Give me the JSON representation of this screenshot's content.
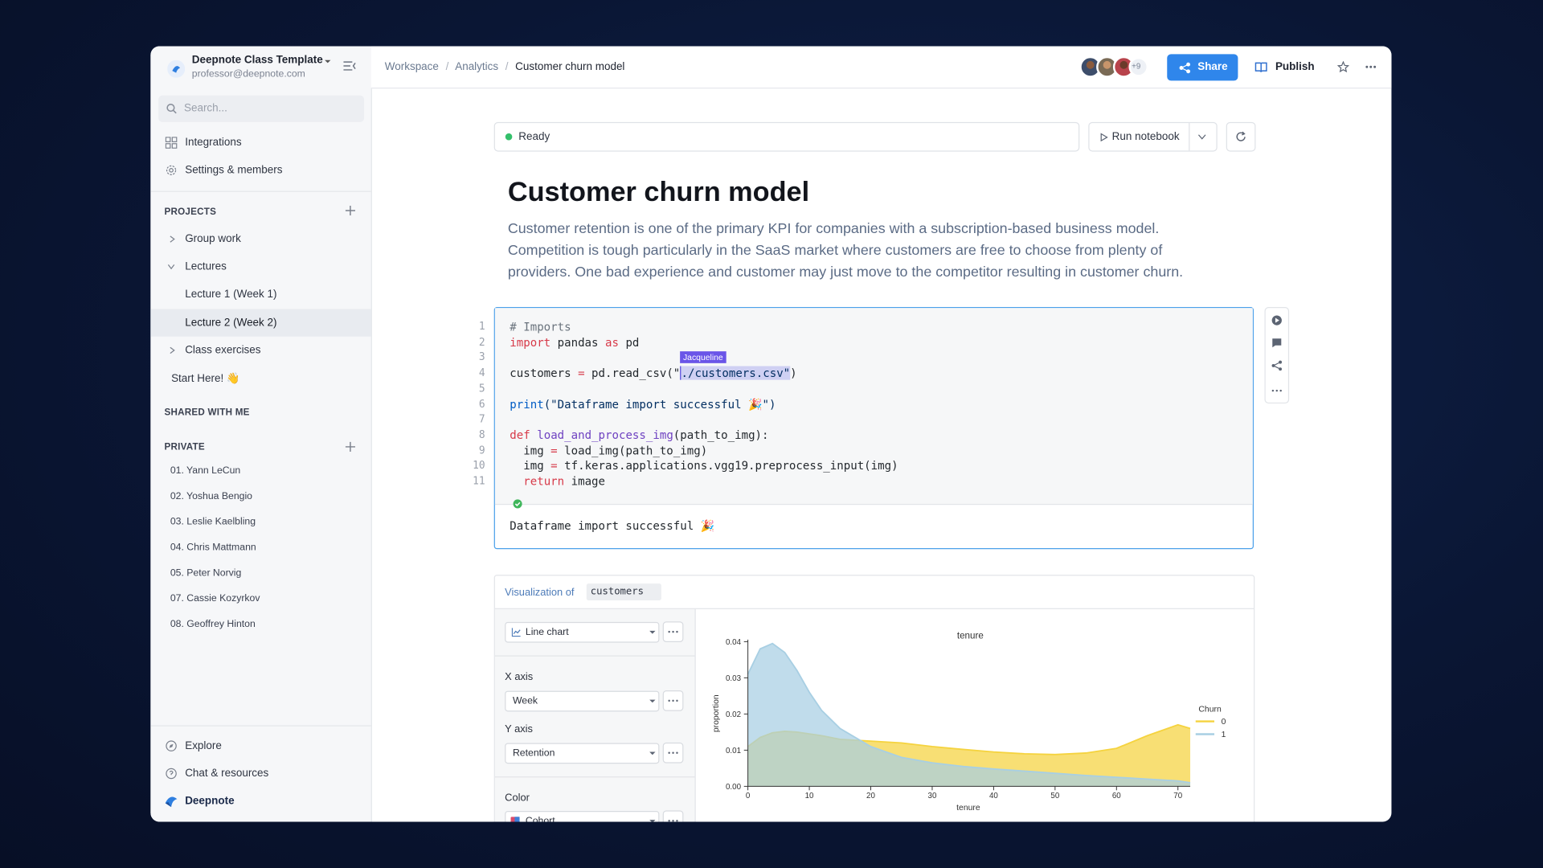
{
  "sidebar": {
    "workspace": "Deepnote Class Template",
    "email": "professor@deepnote.com",
    "search": "Search...",
    "nav": [
      "Integrations",
      "Settings & members"
    ],
    "projects_heading": "PROJECTS",
    "projects": [
      "Group work",
      "Lectures",
      "Lecture 1 (Week 1)",
      "Lecture 2 (Week 2)",
      "Class exercises",
      "Start Here! 👋"
    ],
    "shared_heading": "SHARED WITH ME",
    "private_heading": "PRIVATE",
    "private": [
      "01. Yann LeCun",
      "02. Yoshua Bengio",
      "03. Leslie Kaelbling",
      "04. Chris Mattmann",
      "05. Peter Norvig",
      "07. Cassie Kozyrkov",
      "08. Geoffrey Hinton"
    ],
    "footer": [
      "Explore",
      "Chat & resources",
      "Deepnote"
    ]
  },
  "topbar": {
    "breadcrumb": [
      "Workspace",
      "Analytics",
      "Customer churn model"
    ],
    "separator": "/",
    "more_collaborators": "+9",
    "share": "Share",
    "publish": "Publish"
  },
  "notebook": {
    "status": "Ready",
    "run": "Run notebook",
    "title": "Customer churn model",
    "description": "Customer retention is one of the primary KPI for companies with a subscription-based business model. Competition is tough particularly in the SaaS market where customers are free to choose from plenty of providers. One bad experience and customer may just move to the competitor resulting in customer churn.",
    "code": {
      "line_numbers": [
        1,
        2,
        3,
        4,
        5,
        6,
        7,
        8,
        9,
        10,
        11
      ],
      "cursor_user": "Jacqueline",
      "selection_color": "#cfd0f3",
      "lines": [
        [
          {
            "text": "# Imports",
            "color": "#6a737d"
          }
        ],
        [
          {
            "text": "import",
            "color": "#d73a49"
          },
          {
            "text": " pandas ",
            "color": "#24292e"
          },
          {
            "text": "as",
            "color": "#d73a49"
          },
          {
            "text": " pd",
            "color": "#24292e"
          }
        ],
        [],
        [
          {
            "text": "customers ",
            "color": "#24292e"
          },
          {
            "text": "=",
            "color": "#d73a49"
          },
          {
            "text": " pd.read_csv(\"",
            "color": "#24292e"
          },
          {
            "text": "./customers.csv\"",
            "color": "#032f62",
            "selected": true
          },
          {
            "text": ")",
            "color": "#24292e"
          }
        ],
        [],
        [
          {
            "text": "print",
            "color": "#005cc5"
          },
          {
            "text": "(\"Dataframe import successful 🎉\")",
            "color": "#032f62"
          }
        ],
        [],
        [
          {
            "text": "def",
            "color": "#d73a49"
          },
          {
            "text": " ",
            "color": "#24292e"
          },
          {
            "text": "load_and_process_img",
            "color": "#6f42c1"
          },
          {
            "text": "(path_to_img):",
            "color": "#24292e"
          }
        ],
        [
          {
            "text": "  img ",
            "color": "#24292e"
          },
          {
            "text": "=",
            "color": "#d73a49"
          },
          {
            "text": " load_img(path_to_img)",
            "color": "#24292e"
          }
        ],
        [
          {
            "text": "  img ",
            "color": "#24292e"
          },
          {
            "text": "=",
            "color": "#d73a49"
          },
          {
            "text": " tf.keras.applications.vgg19.preprocess_input(img)",
            "color": "#24292e"
          }
        ],
        [
          {
            "text": "  ",
            "color": "#24292e"
          },
          {
            "text": "return",
            "color": "#d73a49"
          },
          {
            "text": " image",
            "color": "#24292e"
          }
        ]
      ]
    },
    "output": "Dataframe import successful 🎉"
  },
  "visualization": {
    "label": "Visualization of",
    "dataframe": "customers",
    "chart_type": "Line chart",
    "x_axis_label": "X axis",
    "x_axis": "Week",
    "y_axis_label": "Y axis",
    "y_axis": "Retention",
    "color_label": "Color",
    "color": "Cohort",
    "chart": {
      "type": "area",
      "title": "tenure",
      "x_label": "tenure",
      "y_label": "proportion",
      "legend_title": "Churn",
      "x": [
        0,
        2,
        4,
        6,
        8,
        10,
        12,
        15,
        20,
        25,
        30,
        35,
        40,
        45,
        50,
        55,
        60,
        65,
        70,
        72
      ],
      "series": [
        {
          "name": "0",
          "color": "#f5d33f",
          "values": [
            0.011,
            0.0135,
            0.0148,
            0.0152,
            0.015,
            0.0145,
            0.014,
            0.013,
            0.0125,
            0.012,
            0.011,
            0.0102,
            0.0095,
            0.009,
            0.0088,
            0.0092,
            0.0105,
            0.014,
            0.017,
            0.016
          ]
        },
        {
          "name": "1",
          "color": "#a8cfe3",
          "values": [
            0.031,
            0.038,
            0.0395,
            0.037,
            0.032,
            0.026,
            0.021,
            0.016,
            0.011,
            0.008,
            0.0065,
            0.0055,
            0.0048,
            0.0042,
            0.0036,
            0.003,
            0.0025,
            0.002,
            0.0015,
            0.001
          ]
        }
      ],
      "xlim": [
        0,
        72
      ],
      "ylim": [
        0,
        0.04
      ],
      "xticks": [
        0,
        10,
        20,
        30,
        40,
        50,
        60,
        70
      ],
      "yticks": [
        {
          "value": 0,
          "label": "0.00"
        },
        {
          "value": 0.01,
          "label": "0.01"
        },
        {
          "value": 0.02,
          "label": "0.02"
        },
        {
          "value": 0.03,
          "label": "0.03"
        },
        {
          "value": 0.04,
          "label": "0.04"
        }
      ]
    }
  }
}
